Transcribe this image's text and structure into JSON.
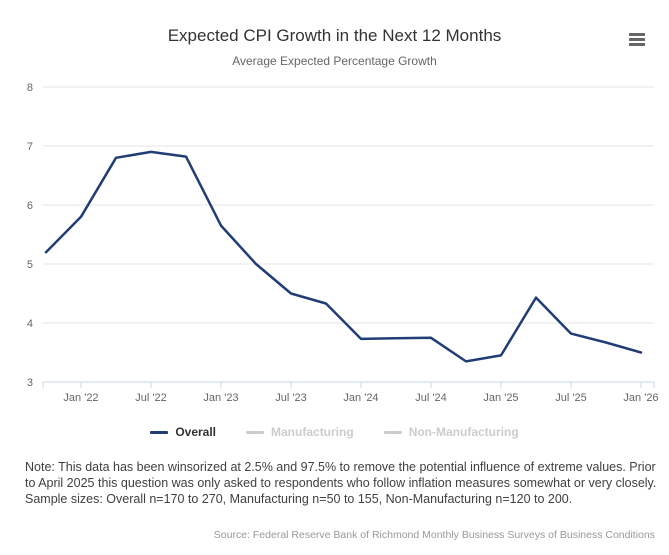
{
  "header": {
    "title": "Expected CPI Growth in the Next 12 Months",
    "subtitle": "Average Expected Percentage Growth"
  },
  "chart_data": {
    "type": "line",
    "title": "Expected CPI Growth in the Next 12 Months",
    "subtitle": "Average Expected Percentage Growth",
    "categories": [
      "Oct '21",
      "Jan '22",
      "Apr '22",
      "Jul '22",
      "Oct '22",
      "Jan '23",
      "Apr '23",
      "Jul '23",
      "Oct '23",
      "Jan '24",
      "Apr '24",
      "Jul '24",
      "Oct '24",
      "Jan '25",
      "Apr '25",
      "Jul '25",
      "Oct '25",
      "Jan '26"
    ],
    "xtick_labels": [
      "Jan '22",
      "Jul '22",
      "Jan '23",
      "Jul '23",
      "Jan '24",
      "Jul '24",
      "Jan '25",
      "Jul '25",
      "Jan '26"
    ],
    "series": [
      {
        "name": "Overall",
        "color": "#203d76",
        "visible": true,
        "values": [
          5.2,
          5.8,
          6.8,
          6.9,
          6.82,
          5.65,
          5.0,
          4.5,
          4.33,
          3.73,
          3.74,
          3.75,
          3.35,
          3.45,
          4.43,
          3.82,
          3.67,
          3.5
        ]
      },
      {
        "name": "Manufacturing",
        "color": "#cccccc",
        "visible": false,
        "values": []
      },
      {
        "name": "Non-Manufacturing",
        "color": "#cccccc",
        "visible": false,
        "values": []
      }
    ],
    "ylim": [
      3,
      8
    ],
    "yticks": [
      3,
      4,
      5,
      6,
      7,
      8
    ],
    "grid": true,
    "legend_position": "bottom"
  },
  "legend": {
    "items": [
      {
        "label": "Overall",
        "active": true
      },
      {
        "label": "Manufacturing",
        "active": false
      },
      {
        "label": "Non-Manufacturing",
        "active": false
      }
    ]
  },
  "note": "Note: This data has been winsorized at 2.5% and 97.5% to remove the potential influence of extreme values. Prior to April 2025 this question was only asked to respondents who follow inflation measures somewhat or very closely. Sample sizes: Overall n=170 to 270, Manufacturing n=50 to 155, Non-Manufacturing n=120 to 200.",
  "source": "Source: Federal Reserve Bank of Richmond Monthly Business Surveys of Business Conditions",
  "colors": {
    "line": "#203d76",
    "disabled": "#cccccc",
    "grid": "#e6e6e6",
    "axis": "#ccd6eb",
    "tick_label": "#666666",
    "title": "#333333",
    "subtitle": "#666666",
    "note": "#404040",
    "source": "#999999"
  }
}
